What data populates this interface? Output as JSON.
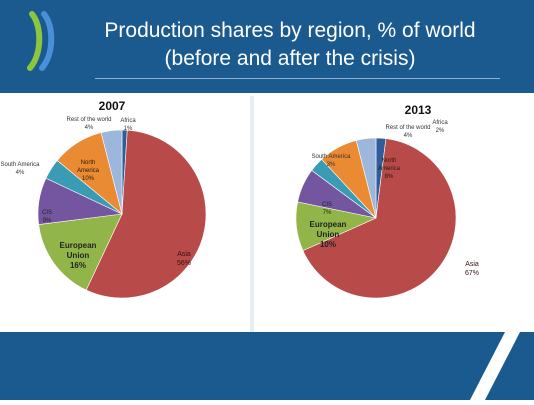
{
  "header": {
    "title_line1": "Production shares by region, % of world",
    "title_line2": "(before and after the crisis)"
  },
  "colors": {
    "header_bg": "#1a5a8f",
    "logo_green": "#8cc63f",
    "logo_blue": "#4a90d9"
  },
  "chart_data": [
    {
      "type": "pie",
      "title": "2007",
      "slices": [
        {
          "name": "Africa",
          "value": 1,
          "label": "1%",
          "color": "#2f5c9a"
        },
        {
          "name": "Asia",
          "value": 56,
          "label": "56%",
          "color": "#b94a4a"
        },
        {
          "name": "European Union",
          "value": 16,
          "label": "16%",
          "color": "#92b54a"
        },
        {
          "name": "CIS",
          "value": 9,
          "label": "9%",
          "color": "#7455a0"
        },
        {
          "name": "South America",
          "value": 4,
          "label": "4%",
          "color": "#3a9bb5"
        },
        {
          "name": "North America",
          "value": 10,
          "label": "10%",
          "color": "#ea8b33"
        },
        {
          "name": "Rest of the world",
          "value": 4,
          "label": "4%",
          "color": "#9db6dc"
        }
      ]
    },
    {
      "type": "pie",
      "title": "2013",
      "slices": [
        {
          "name": "Africa",
          "value": 2,
          "label": "2%",
          "color": "#2f5c9a"
        },
        {
          "name": "Asia",
          "value": 67,
          "label": "67%",
          "color": "#b94a4a"
        },
        {
          "name": "European Union",
          "value": 10,
          "label": "10%",
          "color": "#92b54a"
        },
        {
          "name": "CIS",
          "value": 7,
          "label": "7%",
          "color": "#7455a0"
        },
        {
          "name": "South America",
          "value": 3,
          "label": "3%",
          "color": "#3a9bb5"
        },
        {
          "name": "North America",
          "value": 8,
          "label": "8%",
          "color": "#ea8b33"
        },
        {
          "name": "Rest of the world",
          "value": 4,
          "label": "4%",
          "color": "#9db6dc"
        }
      ]
    }
  ]
}
